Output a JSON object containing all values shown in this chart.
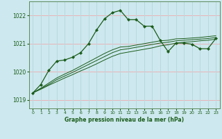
{
  "title": "Graphe pression niveau de la mer (hPa)",
  "background_color": "#cde8ee",
  "plot_bg_color": "#cde8ee",
  "grid_color_h": "#e8b4b8",
  "grid_color_v": "#b8d8e0",
  "line_color": "#1a5c1a",
  "border_color": "#5a8a5a",
  "xlim": [
    -0.5,
    23.5
  ],
  "ylim": [
    1018.7,
    1022.5
  ],
  "yticks": [
    1019,
    1020,
    1021,
    1022
  ],
  "xticks": [
    0,
    1,
    2,
    3,
    4,
    5,
    6,
    7,
    8,
    9,
    10,
    11,
    12,
    13,
    14,
    15,
    16,
    17,
    18,
    19,
    20,
    21,
    22,
    23
  ],
  "series1_x": [
    0,
    1,
    2,
    3,
    4,
    5,
    6,
    7,
    8,
    9,
    10,
    11,
    12,
    13,
    14,
    15,
    16,
    17,
    18,
    19,
    20,
    21,
    22,
    23
  ],
  "series1_y": [
    1019.25,
    1019.55,
    1020.05,
    1020.38,
    1020.42,
    1020.52,
    1020.68,
    1021.0,
    1021.48,
    1021.88,
    1022.1,
    1022.18,
    1021.85,
    1021.85,
    1021.62,
    1021.62,
    1021.12,
    1020.72,
    1021.02,
    1021.02,
    1020.98,
    1020.82,
    1020.82,
    1021.18
  ],
  "series2_x": [
    0,
    1,
    2,
    3,
    4,
    5,
    6,
    7,
    8,
    9,
    10,
    11,
    12,
    13,
    14,
    15,
    16,
    17,
    18,
    19,
    20,
    21,
    22,
    23
  ],
  "series2_y": [
    1019.25,
    1019.42,
    1019.6,
    1019.78,
    1019.92,
    1020.05,
    1020.2,
    1020.35,
    1020.5,
    1020.65,
    1020.78,
    1020.88,
    1020.9,
    1020.95,
    1021.0,
    1021.05,
    1021.1,
    1021.12,
    1021.17,
    1021.18,
    1021.2,
    1021.22,
    1021.25,
    1021.28
  ],
  "series3_x": [
    0,
    1,
    2,
    3,
    4,
    5,
    6,
    7,
    8,
    9,
    10,
    11,
    12,
    13,
    14,
    15,
    16,
    17,
    18,
    19,
    20,
    21,
    22,
    23
  ],
  "series3_y": [
    1019.25,
    1019.4,
    1019.55,
    1019.72,
    1019.85,
    1019.98,
    1020.12,
    1020.26,
    1020.4,
    1020.54,
    1020.68,
    1020.78,
    1020.82,
    1020.87,
    1020.92,
    1020.97,
    1021.02,
    1021.05,
    1021.1,
    1021.12,
    1021.14,
    1021.16,
    1021.18,
    1021.22
  ],
  "series4_x": [
    0,
    1,
    2,
    3,
    4,
    5,
    6,
    7,
    8,
    9,
    10,
    11,
    12,
    13,
    14,
    15,
    16,
    17,
    18,
    19,
    20,
    21,
    22,
    23
  ],
  "series4_y": [
    1019.25,
    1019.38,
    1019.52,
    1019.65,
    1019.78,
    1019.9,
    1020.03,
    1020.15,
    1020.28,
    1020.42,
    1020.55,
    1020.65,
    1020.7,
    1020.75,
    1020.8,
    1020.85,
    1020.92,
    1020.96,
    1021.02,
    1021.05,
    1021.07,
    1021.1,
    1021.12,
    1021.16
  ]
}
